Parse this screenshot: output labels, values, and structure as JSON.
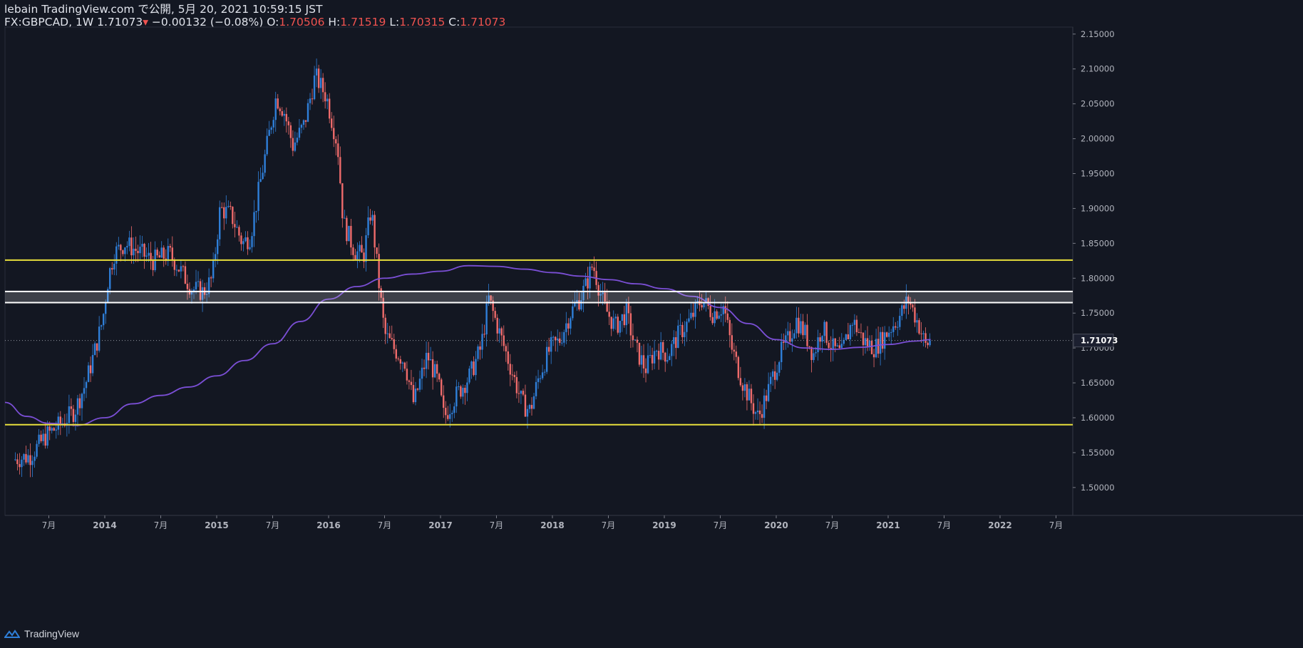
{
  "header": {
    "line1": "lebain TradingView.com で公開, 5月 20, 2021 10:59:15 JST",
    "symbol_interval": "FX:GBPCAD, 1W",
    "last_price": "1.71073",
    "change": "−0.00132 (−0.08%)",
    "open_label": "O:",
    "open_value": "1.70506",
    "high_label": "H:",
    "high_value": "1.71519",
    "low_label": "L:",
    "low_value": "1.70315",
    "close_label": "C:",
    "close_value": "1.71073"
  },
  "footer": {
    "brand": "TradingView"
  },
  "colors": {
    "background": "#131722",
    "up": "#2f7fd9",
    "down": "#ef6b6b",
    "ma": "#7b4fd6",
    "level_lines": "#e8df3c",
    "zone_lines": "#ffffff",
    "price_tag": "#1c2030"
  },
  "chart_data": {
    "type": "candlestick",
    "symbol": "FX:GBPCAD",
    "interval": "1W",
    "last_price": 1.71073,
    "ylim": [
      1.46,
      2.16
    ],
    "y_ticks": [
      "2.15000",
      "2.10000",
      "2.05000",
      "2.00000",
      "1.95000",
      "1.90000",
      "1.85000",
      "1.80000",
      "1.75000",
      "1.70000",
      "1.65000",
      "1.60000",
      "1.55000",
      "1.50000"
    ],
    "x_ticks": [
      "7月",
      "2014",
      "7月",
      "2015",
      "7月",
      "2016",
      "7月",
      "2017",
      "7月",
      "2018",
      "7月",
      "2019",
      "7月",
      "2020",
      "7月",
      "2021",
      "7月",
      "2022",
      "7月"
    ],
    "horizontal_levels": [
      1.826,
      1.59
    ],
    "zone": [
      1.765,
      1.781
    ],
    "price_path": [
      [
        2013.2,
        1.54
      ],
      [
        2013.35,
        1.545
      ],
      [
        2013.5,
        1.575
      ],
      [
        2013.62,
        1.59
      ],
      [
        2013.75,
        1.61
      ],
      [
        2013.85,
        1.65
      ],
      [
        2013.92,
        1.69
      ],
      [
        2014.0,
        1.74
      ],
      [
        2014.05,
        1.8
      ],
      [
        2014.1,
        1.835
      ],
      [
        2014.2,
        1.85
      ],
      [
        2014.3,
        1.84
      ],
      [
        2014.45,
        1.825
      ],
      [
        2014.6,
        1.835
      ],
      [
        2014.7,
        1.81
      ],
      [
        2014.8,
        1.785
      ],
      [
        2014.9,
        1.78
      ],
      [
        2014.98,
        1.8
      ],
      [
        2015.05,
        1.9
      ],
      [
        2015.15,
        1.89
      ],
      [
        2015.25,
        1.85
      ],
      [
        2015.32,
        1.86
      ],
      [
        2015.4,
        1.93
      ],
      [
        2015.48,
        2.0
      ],
      [
        2015.55,
        2.06
      ],
      [
        2015.62,
        2.04
      ],
      [
        2015.7,
        1.99
      ],
      [
        2015.8,
        2.02
      ],
      [
        2015.9,
        2.09
      ],
      [
        2016.0,
        2.06
      ],
      [
        2016.1,
        1.99
      ],
      [
        2016.15,
        1.88
      ],
      [
        2016.25,
        1.84
      ],
      [
        2016.33,
        1.83
      ],
      [
        2016.4,
        1.9
      ],
      [
        2016.47,
        1.79
      ],
      [
        2016.52,
        1.72
      ],
      [
        2016.6,
        1.7
      ],
      [
        2016.7,
        1.68
      ],
      [
        2016.78,
        1.62
      ],
      [
        2016.9,
        1.69
      ],
      [
        2017.0,
        1.65
      ],
      [
        2017.05,
        1.6
      ],
      [
        2017.15,
        1.63
      ],
      [
        2017.28,
        1.66
      ],
      [
        2017.38,
        1.7
      ],
      [
        2017.45,
        1.77
      ],
      [
        2017.55,
        1.72
      ],
      [
        2017.65,
        1.67
      ],
      [
        2017.75,
        1.62
      ],
      [
        2017.82,
        1.61
      ],
      [
        2017.9,
        1.66
      ],
      [
        2018.0,
        1.7
      ],
      [
        2018.08,
        1.71
      ],
      [
        2018.18,
        1.75
      ],
      [
        2018.26,
        1.77
      ],
      [
        2018.32,
        1.79
      ],
      [
        2018.38,
        1.82
      ],
      [
        2018.48,
        1.76
      ],
      [
        2018.58,
        1.73
      ],
      [
        2018.68,
        1.75
      ],
      [
        2018.76,
        1.7
      ],
      [
        2018.85,
        1.67
      ],
      [
        2018.95,
        1.7
      ],
      [
        2019.05,
        1.69
      ],
      [
        2019.15,
        1.72
      ],
      [
        2019.25,
        1.74
      ],
      [
        2019.35,
        1.77
      ],
      [
        2019.45,
        1.75
      ],
      [
        2019.55,
        1.76
      ],
      [
        2019.62,
        1.7
      ],
      [
        2019.72,
        1.65
      ],
      [
        2019.8,
        1.62
      ],
      [
        2019.86,
        1.6
      ],
      [
        2019.95,
        1.64
      ],
      [
        2020.05,
        1.69
      ],
      [
        2020.12,
        1.71
      ],
      [
        2020.2,
        1.74
      ],
      [
        2020.28,
        1.72
      ],
      [
        2020.35,
        1.69
      ],
      [
        2020.43,
        1.73
      ],
      [
        2020.52,
        1.7
      ],
      [
        2020.6,
        1.69
      ],
      [
        2020.7,
        1.74
      ],
      [
        2020.8,
        1.71
      ],
      [
        2020.9,
        1.7
      ],
      [
        2021.0,
        1.72
      ],
      [
        2021.12,
        1.745
      ],
      [
        2021.2,
        1.77
      ],
      [
        2021.3,
        1.73
      ],
      [
        2021.36,
        1.7
      ],
      [
        2021.38,
        1.71
      ]
    ],
    "series": [
      {
        "name": "",
        "type": "line",
        "points": [
          [
            2013.0,
            1.622
          ],
          [
            2013.3,
            1.602
          ],
          [
            2013.5,
            1.592
          ],
          [
            2013.75,
            1.589
          ],
          [
            2014.0,
            1.6
          ],
          [
            2014.25,
            1.62
          ],
          [
            2014.5,
            1.632
          ],
          [
            2014.75,
            1.644
          ],
          [
            2015.0,
            1.66
          ],
          [
            2015.25,
            1.682
          ],
          [
            2015.5,
            1.706
          ],
          [
            2015.75,
            1.738
          ],
          [
            2016.0,
            1.77
          ],
          [
            2016.25,
            1.788
          ],
          [
            2016.5,
            1.8
          ],
          [
            2016.75,
            1.806
          ],
          [
            2017.0,
            1.81
          ],
          [
            2017.25,
            1.818
          ],
          [
            2017.5,
            1.817
          ],
          [
            2017.75,
            1.813
          ],
          [
            2018.0,
            1.808
          ],
          [
            2018.25,
            1.803
          ],
          [
            2018.5,
            1.798
          ],
          [
            2018.75,
            1.792
          ],
          [
            2019.0,
            1.785
          ],
          [
            2019.25,
            1.774
          ],
          [
            2019.5,
            1.758
          ],
          [
            2019.75,
            1.735
          ],
          [
            2020.0,
            1.712
          ],
          [
            2020.25,
            1.7
          ],
          [
            2020.5,
            1.698
          ],
          [
            2020.75,
            1.701
          ],
          [
            2021.0,
            1.705
          ],
          [
            2021.25,
            1.71
          ],
          [
            2021.38,
            1.712
          ]
        ]
      }
    ]
  }
}
